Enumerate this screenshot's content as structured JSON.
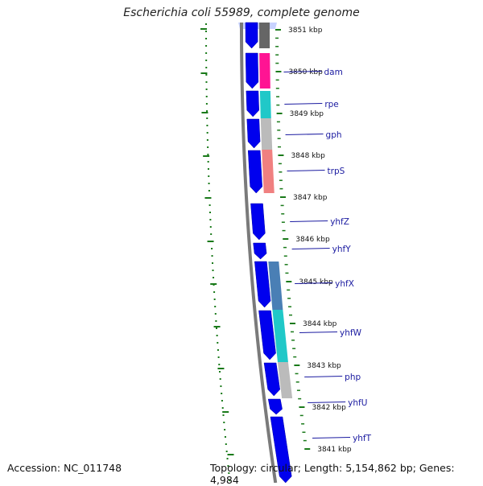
{
  "title": "Escherichia coli 55989, complete genome",
  "footer": {
    "accession": "Accession: NC_011748",
    "summary": "Topology: circular; Length: 5,154,862 bp; Genes: 4,984"
  },
  "ticks": [
    {
      "label": "3851 kbp"
    },
    {
      "label": "3850 kbp"
    },
    {
      "label": "3849 kbp"
    },
    {
      "label": "3848 kbp"
    },
    {
      "label": "3847 kbp"
    },
    {
      "label": "3846 kbp"
    },
    {
      "label": "3845 kbp"
    },
    {
      "label": "3844 kbp"
    },
    {
      "label": "3843 kbp"
    },
    {
      "label": "3842 kbp"
    },
    {
      "label": "3841 kbp"
    }
  ],
  "genes": [
    {
      "name": "dam"
    },
    {
      "name": "rpe"
    },
    {
      "name": "gph"
    },
    {
      "name": "trpS"
    },
    {
      "name": "yhfZ"
    },
    {
      "name": "yhfY"
    },
    {
      "name": "yhfX"
    },
    {
      "name": "yhfW"
    },
    {
      "name": "php"
    },
    {
      "name": "yhfU"
    },
    {
      "name": "yhfT"
    }
  ],
  "colors": {
    "backbone": "#7a7a7a",
    "cds": "#0000ee",
    "tick": "#1a7a1a",
    "label": "#1a1aa0",
    "category_dam": "#ff1493",
    "category_rpe": "#20c8c8",
    "category_gph": "#bbbbbb",
    "category_trpS": "#f08080",
    "category_yhfX": "#4a7fb5",
    "category_yhfW": "#20c8c8",
    "category_php": "#bbbbbb",
    "category_top": "#666666"
  }
}
